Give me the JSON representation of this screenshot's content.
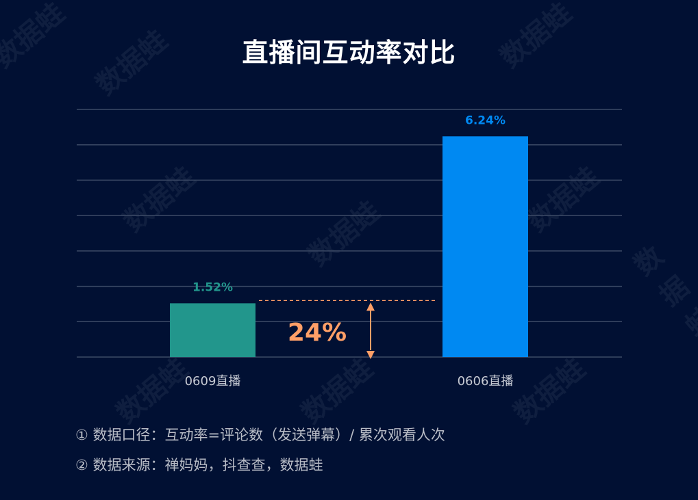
{
  "chart_data": {
    "type": "bar",
    "title": "直播间互动率对比",
    "categories": [
      "0609直播",
      "0606直播"
    ],
    "values": [
      1.52,
      6.24
    ],
    "data_labels": [
      "1.52%",
      "6.24%"
    ],
    "colors": [
      "#22968c",
      "#0089f2"
    ],
    "ylim": [
      0,
      7
    ],
    "grid": true,
    "xlabel": "",
    "ylabel": "",
    "annotation": {
      "text": "24%",
      "color": "#ff9f67"
    }
  },
  "notes": [
    "① 数据口径：互动率=评论数（发送弹幕）/ 累次观看人次",
    "② 数据来源：禅妈妈，抖查查，数据蛙"
  ],
  "watermark": "数据蛙"
}
